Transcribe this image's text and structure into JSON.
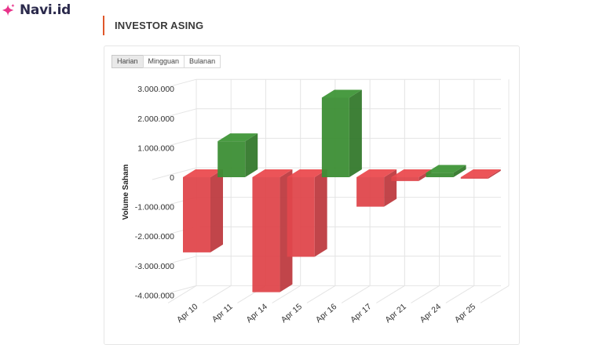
{
  "brand": {
    "name": "Navi.id",
    "icon": "sparkle-icon",
    "icon_color": "#e8338a",
    "text_color": "#2b2a4c"
  },
  "section": {
    "title": "INVESTOR ASING",
    "accent_color": "#e0572a"
  },
  "tabs": [
    {
      "label": "Harian",
      "active": true
    },
    {
      "label": "Mingguan",
      "active": false
    },
    {
      "label": "Bulanan",
      "active": false
    }
  ],
  "colors": {
    "positive": "#3d8f35",
    "negative": "#e0474c"
  },
  "chart_data": {
    "type": "bar",
    "style": "3d-column",
    "title": "",
    "xlabel": "",
    "ylabel": "Volume Saham",
    "categories": [
      "Apr 10",
      "Apr 11",
      "Apr 14",
      "Apr 15",
      "Apr 16",
      "Apr 17",
      "Apr 21",
      "Apr 24",
      "Apr 25"
    ],
    "values": [
      -2550000,
      1220000,
      -3900000,
      -2700000,
      2700000,
      -1000000,
      -130000,
      150000,
      -50000
    ],
    "yticks": [
      3000000,
      2000000,
      1000000,
      0,
      -1000000,
      -2000000,
      -3000000,
      -4000000
    ],
    "ytick_labels": [
      "3.000.000",
      "2.000.000",
      "1.000.000",
      "0",
      "-1.000.000",
      "-2.000.000",
      "-3.000.000",
      "-4.000.000"
    ],
    "ylim": [
      -4000000,
      3000000
    ],
    "grid": true,
    "legend": null
  }
}
